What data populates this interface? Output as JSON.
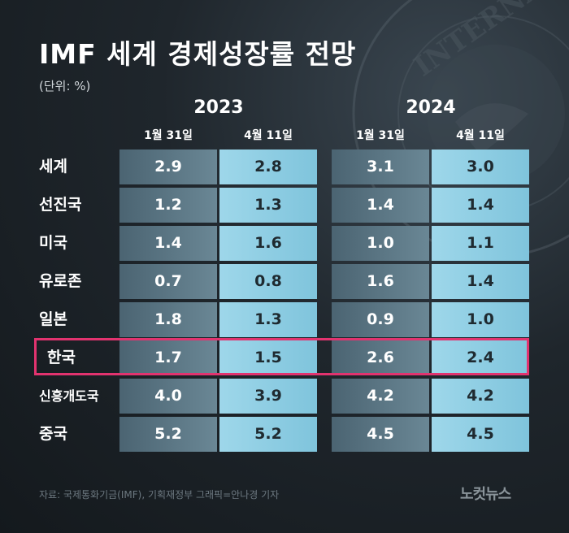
{
  "title": "IMF 세계 경제성장률 전망",
  "unit": "(단위: %)",
  "source": "자료: 국제통화기금(IMF), 기획재정부     그래픽=안나경 기자",
  "logo": "노컷뉴스",
  "colors": {
    "highlight_border": "#e2336f",
    "dark_cell": "#5a7584",
    "light_cell": "#8fcfe4",
    "background": "#1f262c"
  },
  "chart_data": {
    "type": "table",
    "title": "IMF 세계 경제성장률 전망",
    "unit": "(단위: %)",
    "column_groups": [
      {
        "year": "2023",
        "columns": [
          "1월 31일",
          "4월 11일"
        ]
      },
      {
        "year": "2024",
        "columns": [
          "1월 31일",
          "4월 11일"
        ]
      }
    ],
    "rows": [
      {
        "label": "세계",
        "values": [
          "2.9",
          "2.8",
          "3.1",
          "3.0"
        ]
      },
      {
        "label": "선진국",
        "values": [
          "1.2",
          "1.3",
          "1.4",
          "1.4"
        ]
      },
      {
        "label": "미국",
        "values": [
          "1.4",
          "1.6",
          "1.0",
          "1.1"
        ]
      },
      {
        "label": "유로존",
        "values": [
          "0.7",
          "0.8",
          "1.6",
          "1.4"
        ]
      },
      {
        "label": "일본",
        "values": [
          "1.8",
          "1.3",
          "0.9",
          "1.0"
        ]
      },
      {
        "label": "한국",
        "values": [
          "1.7",
          "1.5",
          "2.6",
          "2.4"
        ],
        "highlighted": true
      },
      {
        "label": "신흥개도국",
        "values": [
          "4.0",
          "3.9",
          "4.2",
          "4.2"
        ]
      },
      {
        "label": "중국",
        "values": [
          "5.2",
          "5.2",
          "4.5",
          "4.5"
        ]
      }
    ]
  }
}
